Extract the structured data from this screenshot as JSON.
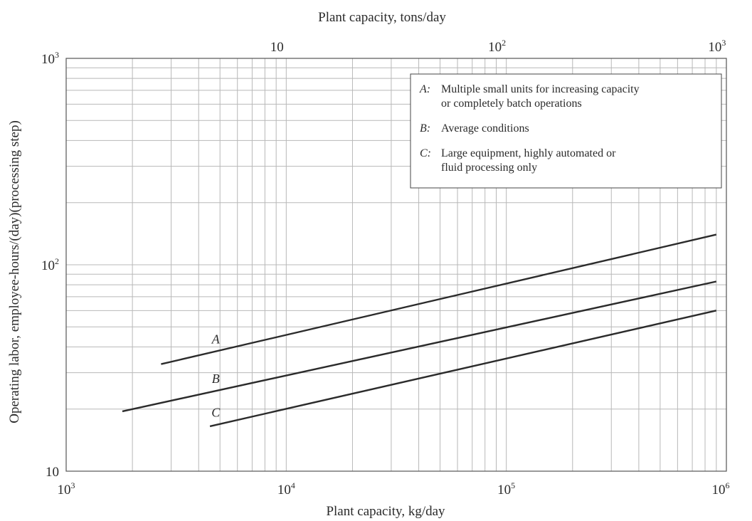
{
  "chart_data": {
    "type": "line",
    "title": "",
    "xlabel": "Plant capacity, kg/day",
    "x2label": "Plant capacity, tons/day",
    "ylabel": "Operating labor, employee-hours/(day)(processing step)",
    "x_scale": "log",
    "y_scale": "log",
    "xlim": [
      1000,
      1000000
    ],
    "x2lim": [
      1,
      1000
    ],
    "ylim": [
      10,
      1000
    ],
    "grid": true,
    "x_ticks": [
      {
        "base": "10",
        "exp": "3"
      },
      {
        "base": "10",
        "exp": "4"
      },
      {
        "base": "10",
        "exp": "5"
      },
      {
        "base": "10",
        "exp": "6"
      }
    ],
    "x2_ticks": [
      {
        "base": "10",
        "exp": ""
      },
      {
        "base": "10",
        "exp": "2"
      },
      {
        "base": "10",
        "exp": "3"
      }
    ],
    "y_ticks": [
      {
        "base": "10",
        "exp": ""
      },
      {
        "base": "10",
        "exp": "2"
      },
      {
        "base": "10",
        "exp": "3"
      }
    ],
    "legend_position": "top-right",
    "legend": [
      {
        "key": "A",
        "text": [
          "Multiple small units for increasing capacity",
          "or completely batch operations"
        ]
      },
      {
        "key": "B",
        "text": [
          "Average conditions"
        ]
      },
      {
        "key": "C",
        "text": [
          "Large equipment, highly automated or",
          "fluid processing only"
        ]
      }
    ],
    "series": [
      {
        "name": "A",
        "x": [
          2700,
          900000
        ],
        "y": [
          33,
          140
        ]
      },
      {
        "name": "B",
        "x": [
          1800,
          900000
        ],
        "y": [
          19.5,
          83
        ]
      },
      {
        "name": "C",
        "x": [
          4500,
          900000
        ],
        "y": [
          16.5,
          60
        ]
      }
    ]
  }
}
